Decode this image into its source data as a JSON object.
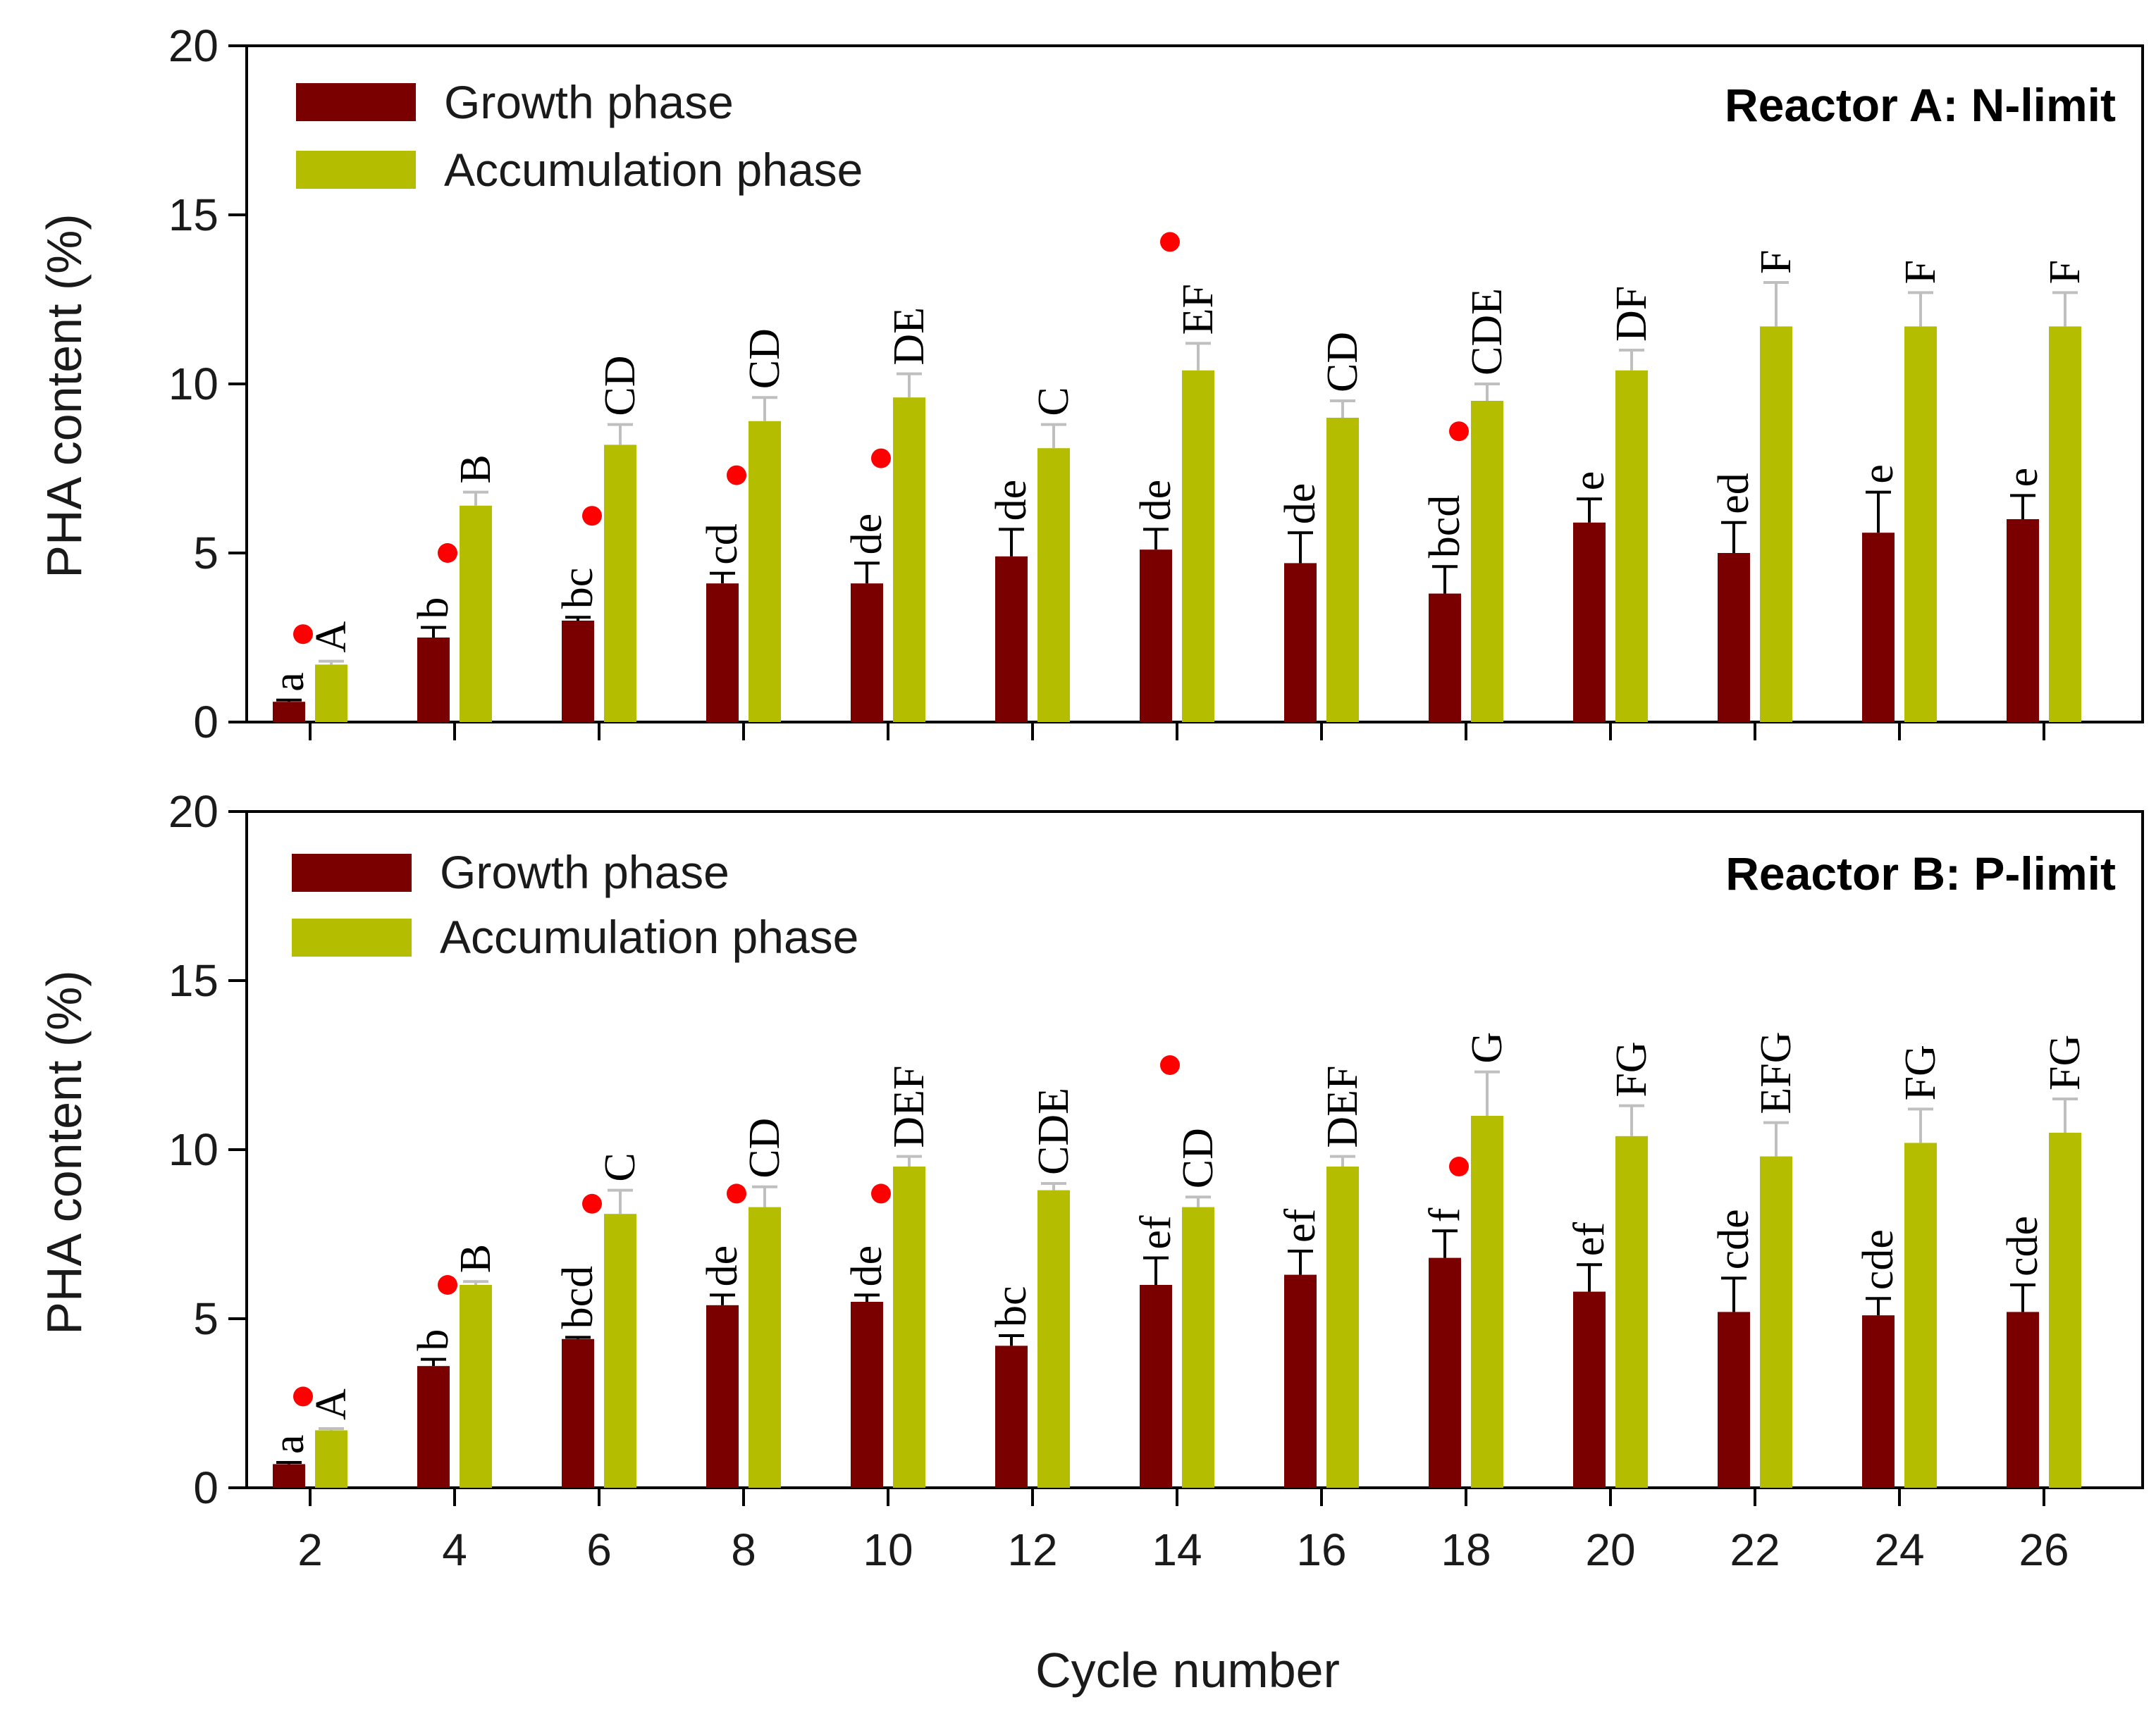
{
  "chart_data": [
    {
      "type": "bar",
      "title": "Reactor A: N-limit",
      "ylabel": "PHA content (%)",
      "xlabel": "",
      "ylim": [
        0,
        20
      ],
      "yticks": [
        0,
        5,
        10,
        15,
        20
      ],
      "categories": [
        "2",
        "4",
        "6",
        "8",
        "10",
        "12",
        "14",
        "16",
        "18",
        "20",
        "22",
        "24",
        "26"
      ],
      "legend_position": "top-left",
      "series": [
        {
          "name": "Growth phase",
          "color": "#7a0000",
          "values": [
            0.6,
            2.5,
            3.0,
            4.1,
            4.1,
            4.9,
            5.1,
            4.7,
            3.8,
            5.9,
            5.0,
            5.6,
            6.0
          ],
          "errors": [
            0.05,
            0.3,
            0.1,
            0.3,
            0.6,
            0.8,
            0.6,
            0.9,
            0.8,
            0.7,
            0.9,
            1.2,
            0.7
          ],
          "labels": [
            "a",
            "b",
            "bc",
            "cd",
            "de",
            "de",
            "de",
            "de",
            "bcd",
            "e",
            "ed",
            "e",
            "e"
          ]
        },
        {
          "name": "Accumulation phase",
          "color": "#b5bd00",
          "values": [
            1.7,
            6.4,
            8.2,
            8.9,
            9.6,
            8.1,
            10.4,
            9.0,
            9.5,
            10.4,
            11.7,
            11.7,
            11.7
          ],
          "errors": [
            0.1,
            0.4,
            0.6,
            0.7,
            0.7,
            0.7,
            0.8,
            0.5,
            0.5,
            0.6,
            1.3,
            1.0,
            1.0
          ],
          "labels": [
            "A",
            "B",
            "CD",
            "CD",
            "DE",
            "C",
            "EF",
            "CD",
            "CDE",
            "DF",
            "F",
            "F",
            "F"
          ]
        }
      ],
      "marker_color": "#ff0000",
      "markers": [
        {
          "category": "2",
          "y": 2.6
        },
        {
          "category": "4",
          "y": 5.0
        },
        {
          "category": "6",
          "y": 6.1
        },
        {
          "category": "8",
          "y": 7.3
        },
        {
          "category": "10",
          "y": 7.8
        },
        {
          "category": "14",
          "y": 14.2
        },
        {
          "category": "18",
          "y": 8.6
        }
      ]
    },
    {
      "type": "bar",
      "title": "Reactor B: P-limit",
      "ylabel": "PHA content (%)",
      "xlabel": "Cycle number",
      "ylim": [
        0,
        20
      ],
      "yticks": [
        0,
        5,
        10,
        15,
        20
      ],
      "categories": [
        "2",
        "4",
        "6",
        "8",
        "10",
        "12",
        "14",
        "16",
        "18",
        "20",
        "22",
        "24",
        "26"
      ],
      "legend_position": "top-left",
      "series": [
        {
          "name": "Growth phase",
          "color": "#7a0000",
          "values": [
            0.7,
            3.6,
            4.4,
            5.4,
            5.5,
            4.2,
            6.0,
            6.3,
            6.8,
            5.8,
            5.2,
            5.1,
            5.2
          ],
          "errors": [
            0.05,
            0.2,
            0.05,
            0.3,
            0.2,
            0.3,
            0.8,
            0.7,
            0.8,
            0.8,
            1.0,
            0.5,
            0.8
          ],
          "labels": [
            "a",
            "b",
            "bcd",
            "de",
            "de",
            "bc",
            "ef",
            "ef",
            "f",
            "ef",
            "cde",
            "cde",
            "cde"
          ]
        },
        {
          "name": "Accumulation phase",
          "color": "#b5bd00",
          "values": [
            1.7,
            6.0,
            8.1,
            8.3,
            9.5,
            8.8,
            8.3,
            9.5,
            11.0,
            10.4,
            9.8,
            10.2,
            10.5
          ],
          "errors": [
            0.05,
            0.1,
            0.7,
            0.6,
            0.3,
            0.2,
            0.3,
            0.3,
            1.3,
            0.9,
            1.0,
            1.0,
            1.0
          ],
          "labels": [
            "A",
            "B",
            "C",
            "CD",
            "DEF",
            "CDE",
            "CD",
            "DEF",
            "G",
            "FG",
            "EFG",
            "FG",
            "FG"
          ]
        }
      ],
      "marker_color": "#ff0000",
      "markers": [
        {
          "category": "2",
          "y": 2.7
        },
        {
          "category": "4",
          "y": 6.0
        },
        {
          "category": "6",
          "y": 8.4
        },
        {
          "category": "8",
          "y": 8.7
        },
        {
          "category": "10",
          "y": 8.7
        },
        {
          "category": "14",
          "y": 12.5
        },
        {
          "category": "18",
          "y": 9.5
        }
      ]
    }
  ]
}
